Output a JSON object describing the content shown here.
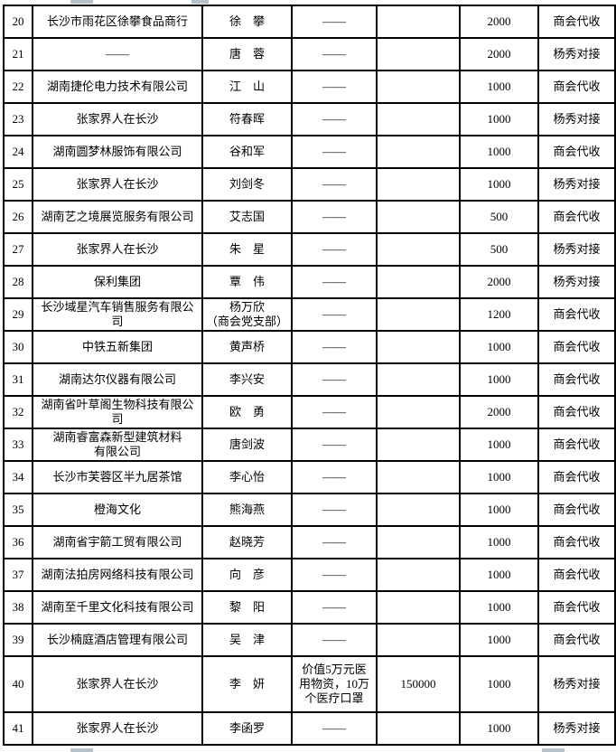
{
  "page": {
    "background": "#ffffff",
    "grid_color": "#000000",
    "artifact_color": "#b7c1ca"
  },
  "table": {
    "rows": [
      {
        "no": "20",
        "company": "长沙市雨花区徐攀食品商行",
        "person": "徐　攀",
        "material": "——",
        "material_value": "",
        "amount": "2000",
        "method": "商会代收"
      },
      {
        "no": "21",
        "company": "——",
        "person": "唐　蓉",
        "material": "——",
        "material_value": "",
        "amount": "2000",
        "method": "杨秀对接"
      },
      {
        "no": "22",
        "company": "湖南捷伦电力技术有限公司",
        "person": "江　山",
        "material": "——",
        "material_value": "",
        "amount": "1000",
        "method": "商会代收"
      },
      {
        "no": "23",
        "company": "张家界人在长沙",
        "person": "符春晖",
        "material": "——",
        "material_value": "",
        "amount": "1000",
        "method": "杨秀对接"
      },
      {
        "no": "24",
        "company": "湖南圆梦林服饰有限公司",
        "person": "谷和军",
        "material": "——",
        "material_value": "",
        "amount": "1000",
        "method": "商会代收"
      },
      {
        "no": "25",
        "company": "张家界人在长沙",
        "person": "刘剑冬",
        "material": "——",
        "material_value": "",
        "amount": "1000",
        "method": "杨秀对接"
      },
      {
        "no": "26",
        "company": "湖南艺之境展览服务有限公司",
        "person": "艾志国",
        "material": "——",
        "material_value": "",
        "amount": "500",
        "method": "商会代收"
      },
      {
        "no": "27",
        "company": "张家界人在长沙",
        "person": "朱　星",
        "material": "——",
        "material_value": "",
        "amount": "500",
        "method": "杨秀对接"
      },
      {
        "no": "28",
        "company": "保利集团",
        "person": "覃　伟",
        "material": "——",
        "material_value": "",
        "amount": "2000",
        "method": "杨秀对接"
      },
      {
        "no": "29",
        "company": "长沙域星汽车销售服务有限公\n司",
        "person": "杨万欣\n（商会党支部）",
        "material": "——",
        "material_value": "",
        "amount": "1200",
        "method": "商会代收"
      },
      {
        "no": "30",
        "company": "中铁五新集团",
        "person": "黄声桥",
        "material": "——",
        "material_value": "",
        "amount": "1000",
        "method": "商会代收"
      },
      {
        "no": "31",
        "company": "湖南达尔仪器有限公司",
        "person": "李兴安",
        "material": "——",
        "material_value": "",
        "amount": "1000",
        "method": "商会代收"
      },
      {
        "no": "32",
        "company": "湖南省叶草阁生物科技有限公\n司",
        "person": "欧　勇",
        "material": "——",
        "material_value": "",
        "amount": "2000",
        "method": "商会代收"
      },
      {
        "no": "33",
        "company": "湖南睿富森新型建筑材料\n有限公司",
        "person": "唐剑波",
        "material": "——",
        "material_value": "",
        "amount": "1000",
        "method": "商会代收"
      },
      {
        "no": "34",
        "company": "长沙市芙蓉区半九居茶馆",
        "person": "李心怡",
        "material": "——",
        "material_value": "",
        "amount": "1000",
        "method": "商会代收"
      },
      {
        "no": "35",
        "company": "橙海文化",
        "person": "熊海燕",
        "material": "——",
        "material_value": "",
        "amount": "1000",
        "method": "商会代收"
      },
      {
        "no": "36",
        "company": "湖南省宇箭工贸有限公司",
        "person": "赵晓芳",
        "material": "——",
        "material_value": "",
        "amount": "1000",
        "method": "商会代收"
      },
      {
        "no": "37",
        "company": "湖南法拍房网络科技有限公司",
        "person": "向　彦",
        "material": "——",
        "material_value": "",
        "amount": "1000",
        "method": "商会代收"
      },
      {
        "no": "38",
        "company": "湖南至千里文化科技有限公司",
        "person": "黎　阳",
        "material": "——",
        "material_value": "",
        "amount": "1000",
        "method": "商会代收"
      },
      {
        "no": "39",
        "company": "长沙楠庭酒店管理有限公司",
        "person": "吴　津",
        "material": "——",
        "material_value": "",
        "amount": "1000",
        "method": "商会代收"
      },
      {
        "no": "40",
        "company": "张家界人在长沙",
        "person": "李　妍",
        "material": "价值5万元医\n用物资，10万\n个医疗口罩",
        "material_value": "150000",
        "amount": "1000",
        "method": "杨秀对接",
        "h": 62
      },
      {
        "no": "41",
        "company": "张家界人在长沙",
        "person": "李函罗",
        "material": "——",
        "material_value": "",
        "amount": "1000",
        "method": "杨秀对接"
      }
    ]
  }
}
